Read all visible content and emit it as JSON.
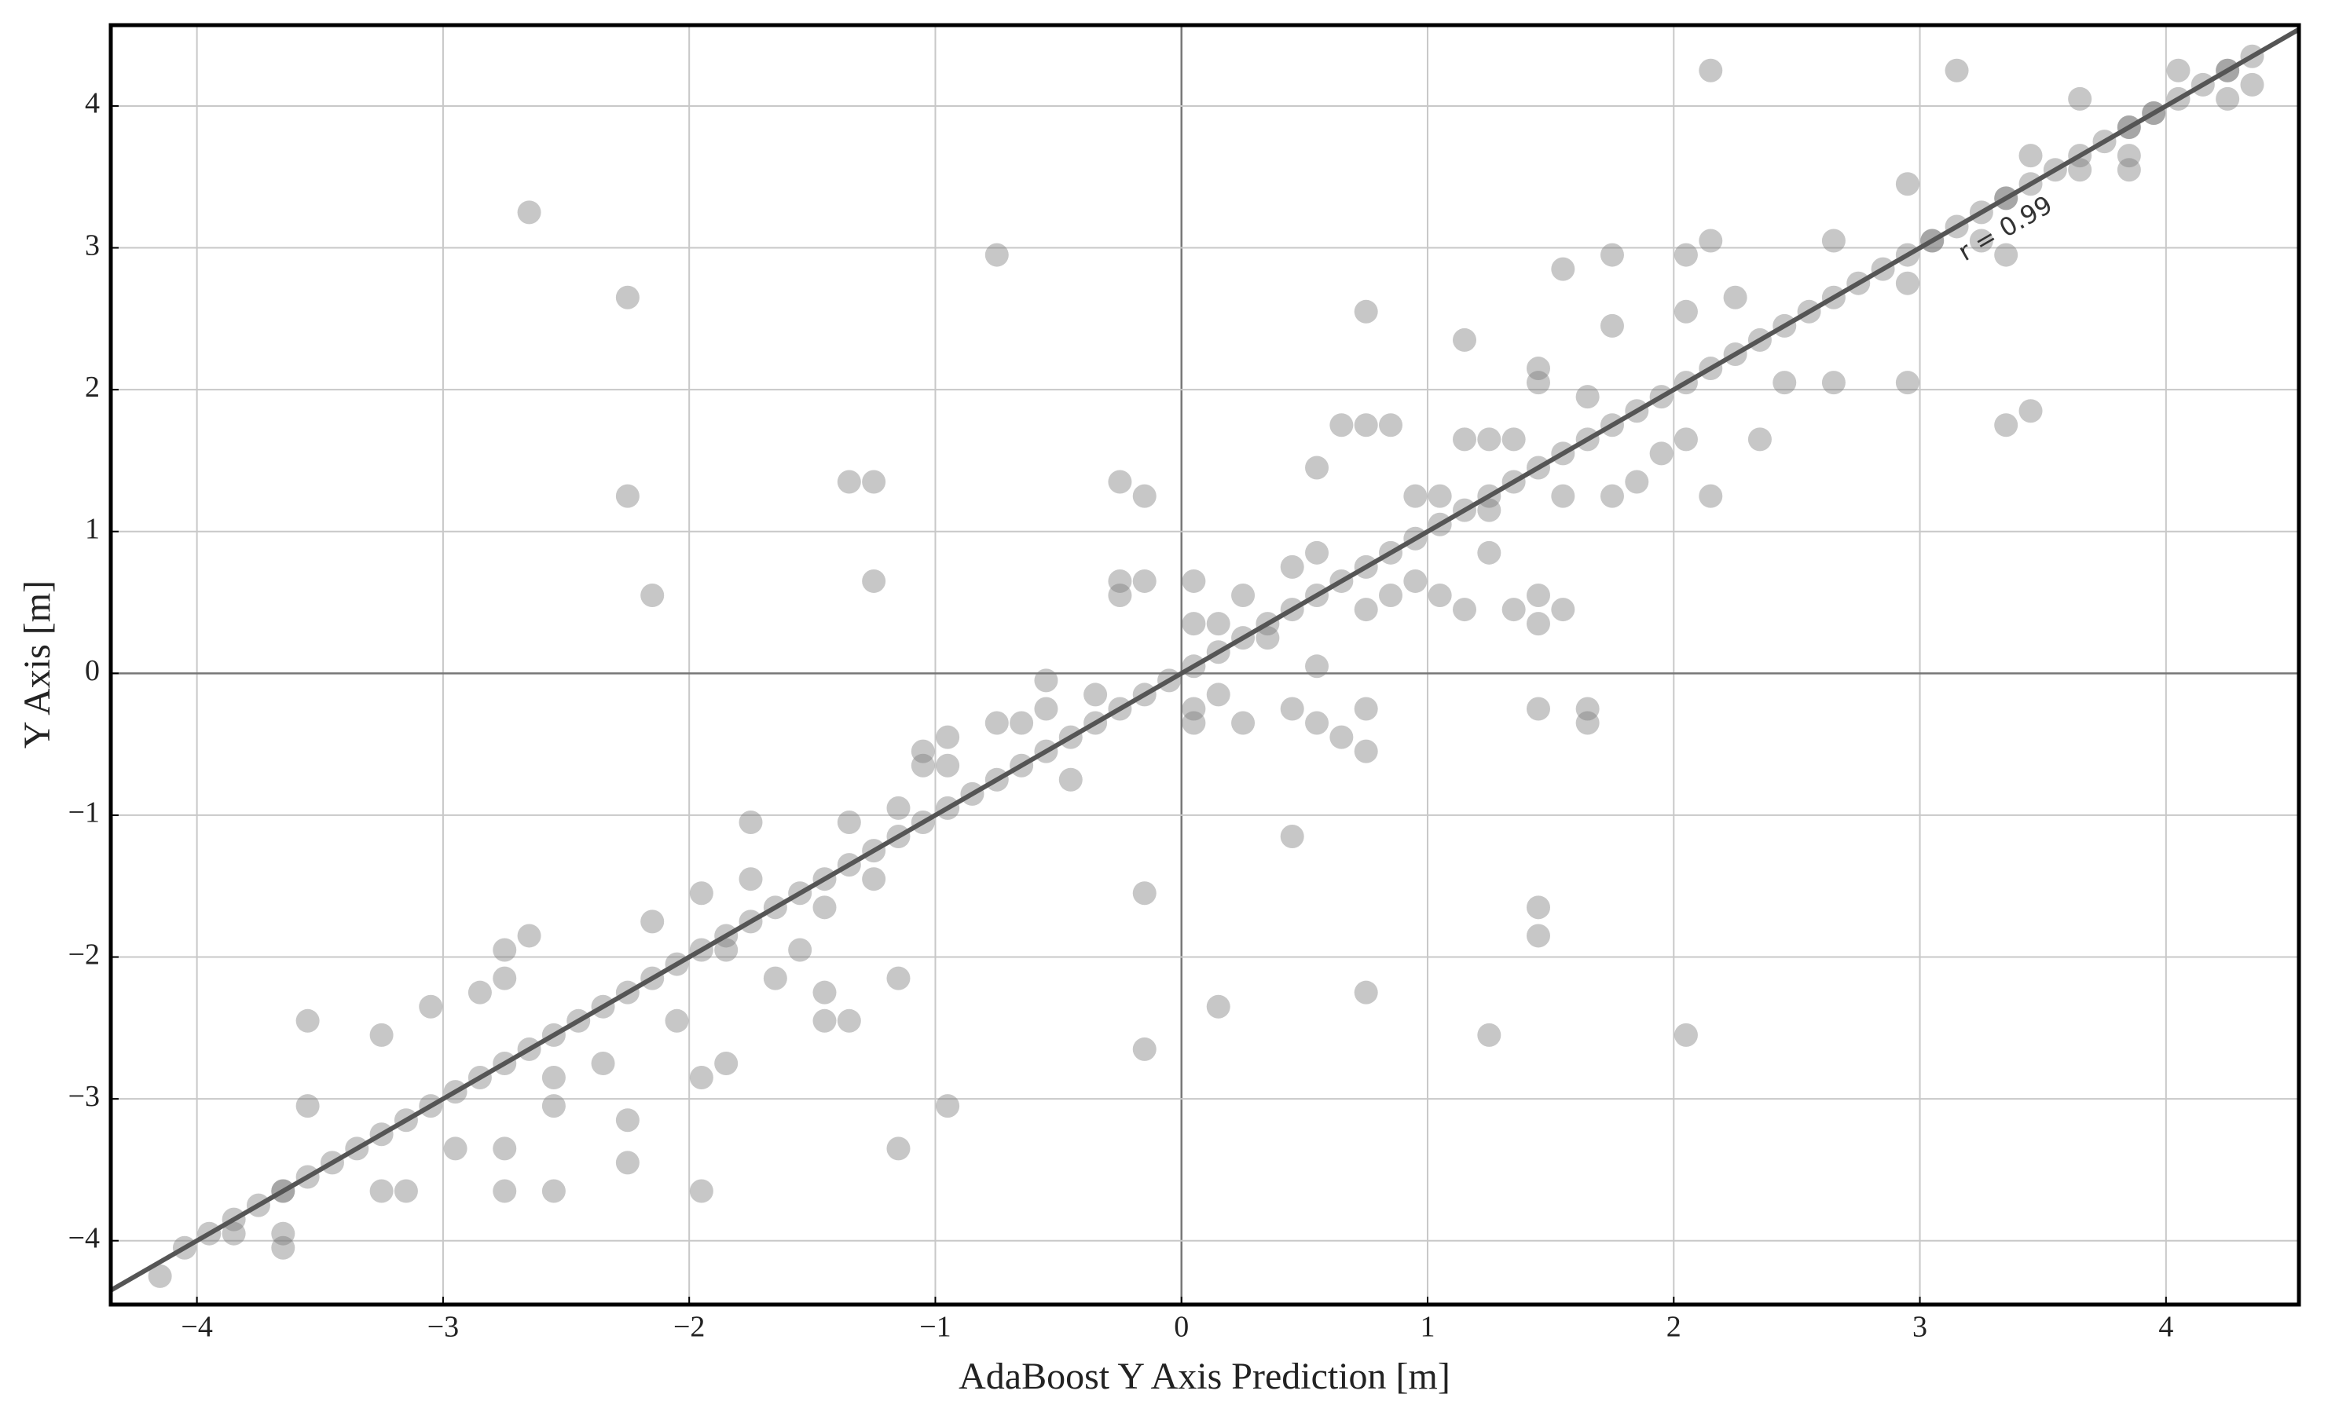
{
  "chart_data": {
    "type": "scatter",
    "xlabel": "AdaBoost Y Axis Prediction [m]",
    "ylabel": "Y Axis [m]",
    "annotation": "r = 0.99",
    "xlim": [
      -4.35,
      4.54
    ],
    "ylim": [
      -4.45,
      4.57
    ],
    "xticks": [
      {
        "value": -4,
        "label": "−4"
      },
      {
        "value": -3,
        "label": "−3"
      },
      {
        "value": -2,
        "label": "−2"
      },
      {
        "value": -1,
        "label": "−1"
      },
      0,
      1,
      2,
      3,
      4
    ],
    "yticks": [
      {
        "value": -4,
        "label": "−4"
      },
      {
        "value": -3,
        "label": "−3"
      },
      {
        "value": -2,
        "label": "−2"
      },
      {
        "value": -1,
        "label": "−1"
      },
      0,
      1,
      2,
      3,
      4
    ],
    "grid": true,
    "color": "#7a7a7a",
    "line_color": "#555555",
    "fit": {
      "x": [
        -4.35,
        4.54
      ],
      "y": [
        -4.35,
        4.54
      ]
    },
    "x": [
      -2.65,
      -2.25,
      -0.75,
      -2.25,
      -2.15,
      -1.35,
      -1.25,
      -1.25,
      -0.25,
      -0.15,
      -0.25,
      -0.25,
      -0.15,
      0.05,
      2.15,
      3.15,
      3.65,
      0.75,
      1.15,
      1.55,
      1.75,
      2.95,
      3.45,
      3.35,
      2.35,
      2.15,
      0.55,
      0.65,
      0.75,
      0.85,
      1.45,
      1.65,
      1.65,
      0.45,
      1.45,
      1.45,
      0.75,
      0.15,
      1.25,
      2.05,
      -0.15,
      -0.15,
      -0.95,
      -1.15,
      -1.15,
      -1.95,
      -2.25,
      -2.55,
      -2.75,
      -3.55,
      -1.75,
      -1.65,
      -1.85,
      -1.95,
      -1.35,
      -1.45,
      -1.45,
      -2.65,
      0.75,
      0.75,
      0.45,
      0.55,
      0.65,
      0.55,
      0.25,
      1.45,
      1.55,
      -0.95,
      -0.55,
      3.85,
      3.85,
      4.05,
      4.35,
      3.25,
      2.95,
      -4.15,
      -4.05,
      -3.95,
      -3.85,
      -3.75,
      -3.65,
      -3.55,
      -3.45,
      -3.35,
      -3.25,
      -3.15,
      -3.05,
      -2.95,
      -2.85,
      -2.75,
      -2.65,
      -2.55,
      -2.45,
      -2.35,
      -2.25,
      -2.15,
      -2.05,
      -1.95,
      -1.85,
      -1.75,
      -1.65,
      -1.55,
      -1.45,
      -1.35,
      -1.25,
      -1.15,
      -1.05,
      -0.95,
      -0.85,
      -0.75,
      -0.65,
      -0.55,
      -0.45,
      -0.35,
      -0.25,
      -0.15,
      -0.05,
      0.05,
      0.15,
      0.25,
      0.35,
      0.45,
      0.55,
      0.65,
      0.75,
      0.85,
      0.95,
      1.05,
      1.15,
      1.25,
      1.35,
      1.45,
      1.55,
      1.65,
      1.75,
      1.85,
      1.95,
      2.05,
      2.15,
      2.25,
      2.35,
      2.45,
      2.55,
      2.65,
      2.75,
      2.85,
      2.95,
      3.05,
      3.15,
      3.25,
      3.35,
      3.45,
      3.55,
      3.65,
      3.75,
      3.85,
      3.95,
      4.05,
      4.15,
      4.25,
      4.35,
      -3.25,
      -3.05,
      -2.85,
      -2.75,
      -2.95,
      -3.15,
      -3.25,
      -3.65,
      -3.65,
      -3.65,
      -3.85,
      -3.55,
      -2.75,
      -2.55,
      -2.55,
      -2.75,
      -2.35,
      -2.25,
      -2.15,
      -1.95,
      -2.05,
      1.25,
      1.35,
      1.45,
      1.45,
      1.25,
      1.15,
      1.35,
      1.45,
      1.25,
      1.55,
      1.75,
      1.65,
      1.75,
      1.85,
      1.95,
      2.05,
      2.05,
      2.05,
      2.15,
      2.25,
      2.45,
      2.65,
      2.65,
      2.95,
      3.05,
      3.35,
      3.45,
      3.35,
      3.65,
      3.85,
      3.95,
      4.25,
      4.25,
      0.85,
      0.95,
      1.05,
      0.75,
      0.55,
      0.95,
      1.05,
      1.15,
      -0.45,
      -0.55,
      -0.65,
      -0.75,
      -1.05,
      -0.95,
      -1.05,
      -1.15,
      -1.25,
      -1.35,
      -1.45,
      -1.55,
      -1.75,
      -1.85,
      -0.35,
      0.05,
      0.15,
      0.15,
      0.25,
      0.35,
      0.45,
      0.05,
      0.05
    ],
    "values": [
      3.25,
      2.65,
      2.95,
      1.25,
      0.55,
      1.35,
      1.35,
      0.65,
      1.35,
      1.25,
      0.65,
      0.55,
      0.65,
      0.65,
      4.25,
      4.25,
      4.05,
      2.55,
      2.35,
      2.85,
      2.95,
      2.05,
      1.85,
      1.75,
      1.65,
      1.25,
      1.45,
      1.75,
      1.75,
      1.75,
      -0.25,
      -0.25,
      -0.35,
      -1.15,
      -1.65,
      -1.85,
      -2.25,
      -2.35,
      -2.55,
      -2.55,
      -1.55,
      -2.65,
      -3.05,
      -3.35,
      -2.15,
      -3.65,
      -3.45,
      -3.65,
      -3.65,
      -2.45,
      -1.05,
      -2.15,
      -2.75,
      -2.85,
      -2.45,
      -2.45,
      -2.25,
      -1.85,
      -0.55,
      -0.25,
      -0.25,
      -0.35,
      -0.45,
      0.05,
      -0.35,
      0.35,
      0.45,
      -0.45,
      -0.05,
      3.55,
      3.65,
      4.25,
      4.15,
      3.05,
      3.45,
      -4.25,
      -4.05,
      -3.95,
      -3.85,
      -3.75,
      -3.65,
      -3.55,
      -3.45,
      -3.35,
      -3.25,
      -3.15,
      -3.05,
      -2.95,
      -2.85,
      -2.75,
      -2.65,
      -2.55,
      -2.45,
      -2.35,
      -2.25,
      -2.15,
      -2.05,
      -1.95,
      -1.85,
      -1.75,
      -1.65,
      -1.55,
      -1.45,
      -1.35,
      -1.25,
      -1.15,
      -1.05,
      -0.95,
      -0.85,
      -0.75,
      -0.65,
      -0.55,
      -0.45,
      -0.35,
      -0.25,
      -0.15,
      -0.05,
      0.05,
      0.15,
      0.25,
      0.35,
      0.45,
      0.55,
      0.65,
      0.75,
      0.85,
      0.95,
      1.05,
      1.15,
      1.25,
      1.35,
      1.45,
      1.55,
      1.65,
      1.75,
      1.85,
      1.95,
      2.05,
      2.15,
      2.25,
      2.35,
      2.45,
      2.55,
      2.65,
      2.75,
      2.85,
      2.95,
      3.05,
      3.15,
      3.25,
      3.35,
      3.45,
      3.55,
      3.65,
      3.75,
      3.85,
      3.95,
      4.05,
      4.15,
      4.25,
      4.35,
      -2.55,
      -2.35,
      -2.25,
      -2.15,
      -3.35,
      -3.65,
      -3.65,
      -3.65,
      -3.95,
      -4.05,
      -3.95,
      -3.05,
      -3.35,
      -3.05,
      -2.85,
      -1.95,
      -2.75,
      -3.15,
      -1.75,
      -1.55,
      -2.45,
      1.65,
      1.65,
      2.15,
      2.05,
      0.85,
      0.45,
      0.45,
      0.55,
      1.15,
      1.25,
      1.25,
      1.95,
      2.45,
      1.35,
      1.55,
      2.55,
      2.95,
      1.65,
      3.05,
      2.65,
      2.05,
      2.05,
      3.05,
      2.75,
      3.05,
      3.35,
      3.65,
      2.95,
      3.55,
      3.85,
      3.95,
      4.05,
      4.25,
      0.55,
      0.65,
      0.55,
      0.45,
      0.85,
      1.25,
      1.25,
      1.65,
      -0.75,
      -0.25,
      -0.35,
      -0.35,
      -0.55,
      -0.65,
      -0.65,
      -0.95,
      -1.45,
      -1.05,
      -1.65,
      -1.95,
      -1.45,
      -1.95,
      -0.15,
      0.35,
      -0.15,
      0.35,
      0.55,
      0.25,
      0.75,
      -0.35,
      -0.25
    ]
  }
}
